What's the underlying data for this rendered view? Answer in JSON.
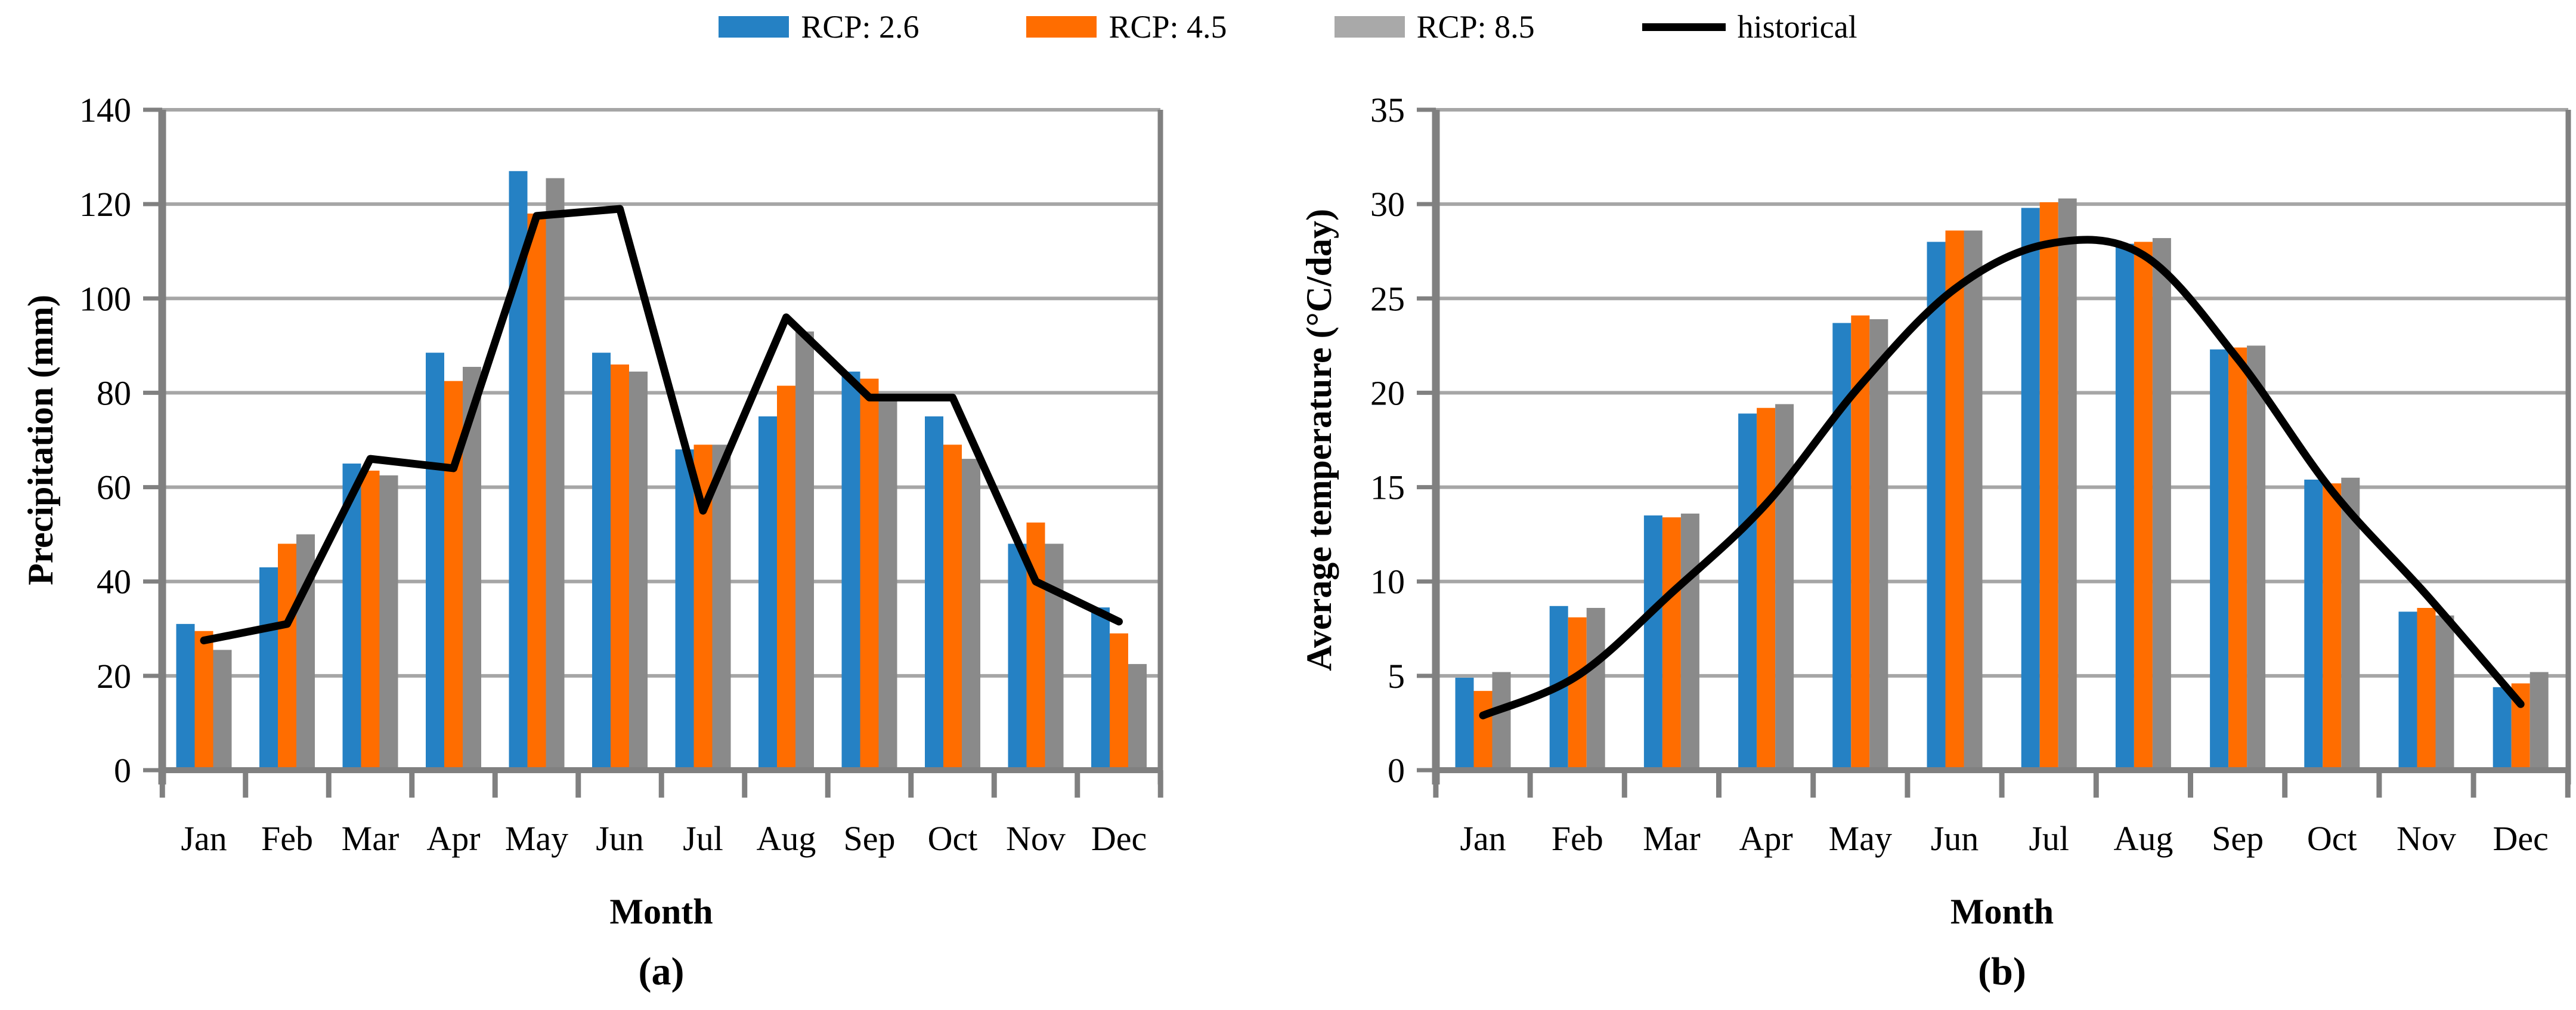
{
  "page": {
    "background": "#ffffff"
  },
  "legend": {
    "items": [
      {
        "label": "RCP: 2.6",
        "color": "#2581c4",
        "marker": "square"
      },
      {
        "label": "RCP: 4.5",
        "color": "#ff6d00",
        "marker": "square"
      },
      {
        "label": "RCP: 8.5",
        "color": "#a9a9a9",
        "marker": "square"
      },
      {
        "label": "historical",
        "color": "#000000",
        "marker": "line"
      }
    ]
  },
  "chart_data": [
    {
      "type": "bar",
      "panel_caption": "(a)",
      "xlabel": "Month",
      "ylabel": "Precipitation (mm)",
      "ylim": [
        0,
        140
      ],
      "ytick_step": 20,
      "grid": true,
      "legend_position": "top-center-shared",
      "categories": [
        "Jan",
        "Feb",
        "Mar",
        "Apr",
        "May",
        "Jun",
        "Jul",
        "Aug",
        "Sep",
        "Oct",
        "Nov",
        "Dec"
      ],
      "series": [
        {
          "name": "RCP: 2.6",
          "type": "bar",
          "color": "#2581c4",
          "values": [
            31,
            43,
            65,
            88.5,
            127,
            88.5,
            68,
            75,
            84.5,
            75,
            48,
            34.5
          ]
        },
        {
          "name": "RCP: 4.5",
          "type": "bar",
          "color": "#ff6d00",
          "values": [
            29.5,
            48,
            63.5,
            82.5,
            118,
            86,
            69,
            81.5,
            83,
            69,
            52.5,
            29
          ]
        },
        {
          "name": "RCP: 8.5",
          "type": "bar",
          "color": "#8a8a8a",
          "values": [
            25.5,
            50,
            62.5,
            85.5,
            125.5,
            84.5,
            69,
            93,
            79,
            66,
            48,
            22.5
          ]
        },
        {
          "name": "historical",
          "type": "line",
          "color": "#000000",
          "smoothed": false,
          "values": [
            27.5,
            31,
            66,
            64,
            117.5,
            119,
            55,
            96,
            79,
            79,
            40,
            31.5
          ]
        }
      ]
    },
    {
      "type": "bar",
      "panel_caption": "(b)",
      "xlabel": "Month",
      "ylabel": "Average temperature (°C/day)",
      "ylim": [
        0,
        35
      ],
      "ytick_step": 5,
      "grid": true,
      "legend_position": "top-center-shared",
      "categories": [
        "Jan",
        "Feb",
        "Mar",
        "Apr",
        "May",
        "Jun",
        "Jul",
        "Aug",
        "Sep",
        "Oct",
        "Nov",
        "Dec"
      ],
      "series": [
        {
          "name": "RCP: 2.6",
          "type": "bar",
          "color": "#2581c4",
          "values": [
            4.9,
            8.7,
            13.5,
            18.9,
            23.7,
            28,
            29.8,
            27.9,
            22.3,
            15.4,
            8.4,
            4.4
          ]
        },
        {
          "name": "RCP: 4.5",
          "type": "bar",
          "color": "#ff6d00",
          "values": [
            4.2,
            8.1,
            13.4,
            19.2,
            24.1,
            28.6,
            30.1,
            28,
            22.4,
            15.2,
            8.6,
            4.6
          ]
        },
        {
          "name": "RCP: 8.5",
          "type": "bar",
          "color": "#8a8a8a",
          "values": [
            5.2,
            8.6,
            13.6,
            19.4,
            23.9,
            28.6,
            30.3,
            28.2,
            22.5,
            15.5,
            8.2,
            5.2
          ]
        },
        {
          "name": "historical",
          "type": "line",
          "color": "#000000",
          "smoothed": true,
          "values": [
            2.9,
            5,
            9.4,
            14.1,
            20.4,
            25.5,
            27.9,
            27.3,
            21.8,
            14.8,
            9.3,
            3.5
          ]
        }
      ]
    }
  ]
}
